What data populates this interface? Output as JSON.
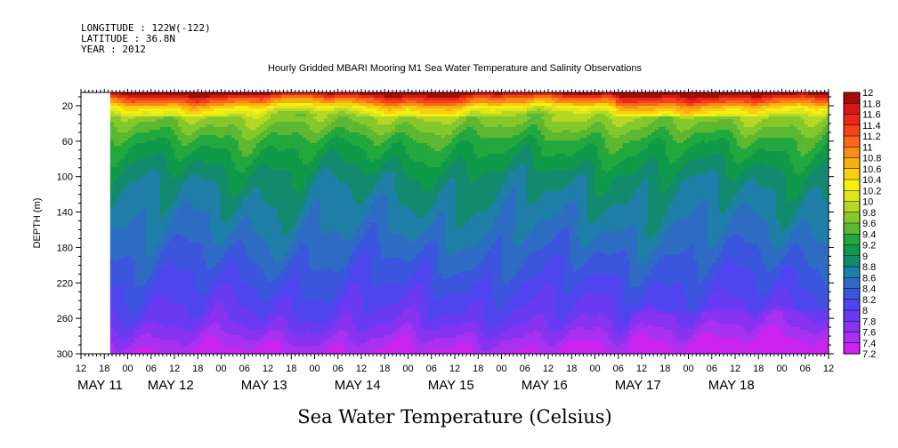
{
  "header": {
    "longitude": "LONGITUDE : 122W(-122)",
    "latitude": "LATITUDE : 36.8N",
    "year": "YEAR : 2012"
  },
  "chart_data": {
    "type": "heatmap",
    "title": "Hourly Gridded MBARI Mooring M1 Sea Water Temperature and Salinity Observations",
    "variable_label": "Sea Water Temperature (Celsius)",
    "ylabel": "DEPTH (m)",
    "y_ticks": [
      20,
      60,
      100,
      140,
      180,
      220,
      260,
      300
    ],
    "ylim": [
      300,
      5
    ],
    "x_hour_labels": [
      "12",
      "18",
      "00",
      "06",
      "12",
      "18",
      "00",
      "06",
      "12",
      "18",
      "00",
      "06",
      "12",
      "18",
      "00",
      "06",
      "12",
      "18",
      "00",
      "06",
      "12",
      "18",
      "00",
      "06",
      "12",
      "18",
      "00",
      "06",
      "12",
      "18",
      "00",
      "06",
      "12"
    ],
    "x_day_labels": [
      {
        "label": "MAY 11",
        "hour_index": 0
      },
      {
        "label": "MAY 12",
        "hour_index": 3
      },
      {
        "label": "MAY 13",
        "hour_index": 7
      },
      {
        "label": "MAY 14",
        "hour_index": 11
      },
      {
        "label": "MAY 15",
        "hour_index": 15
      },
      {
        "label": "MAY 16",
        "hour_index": 19
      },
      {
        "label": "MAY 17",
        "hour_index": 23
      },
      {
        "label": "MAY 18",
        "hour_index": 27
      }
    ],
    "data_start_hour_index": 1.25,
    "colorbar_levels": [
      "7.2",
      "7.4",
      "7.6",
      "7.8",
      "8",
      "8.2",
      "8.4",
      "8.6",
      "8.8",
      "9",
      "9.2",
      "9.4",
      "9.6",
      "9.8",
      "10",
      "10.2",
      "10.4",
      "10.6",
      "10.8",
      "11",
      "11.2",
      "11.4",
      "11.6",
      "11.8",
      "12"
    ],
    "colorbar_colors": [
      "#cc22ee",
      "#a830f0",
      "#8833f0",
      "#6a3af2",
      "#4f45ee",
      "#3b55dd",
      "#2e6cc4",
      "#1f7fa8",
      "#138a6e",
      "#11994a",
      "#22a83c",
      "#5cb832",
      "#84c82c",
      "#b4d824",
      "#dce81c",
      "#f4f010",
      "#f8d010",
      "#f8b010",
      "#f88c18",
      "#f86818",
      "#f44418",
      "#e82818",
      "#d81818",
      "#a80a0a"
    ],
    "depth_profile_bands": [
      {
        "depth": [
          5,
          12
        ],
        "temperature": [
          11.0,
          11.9
        ]
      },
      {
        "depth": [
          12,
          20
        ],
        "temperature": [
          10.4,
          11.2
        ]
      },
      {
        "depth": [
          20,
          30
        ],
        "temperature": [
          9.9,
          10.4
        ]
      },
      {
        "depth": [
          30,
          60
        ],
        "temperature": [
          9.3,
          9.8
        ]
      },
      {
        "depth": [
          60,
          100
        ],
        "temperature": [
          8.9,
          9.3
        ]
      },
      {
        "depth": [
          100,
          160
        ],
        "temperature": [
          8.6,
          8.9
        ]
      },
      {
        "depth": [
          160,
          220
        ],
        "temperature": [
          8.2,
          8.6
        ]
      },
      {
        "depth": [
          220,
          260
        ],
        "temperature": [
          7.9,
          8.2
        ]
      },
      {
        "depth": [
          260,
          300
        ],
        "temperature": [
          7.3,
          7.9
        ]
      }
    ]
  }
}
